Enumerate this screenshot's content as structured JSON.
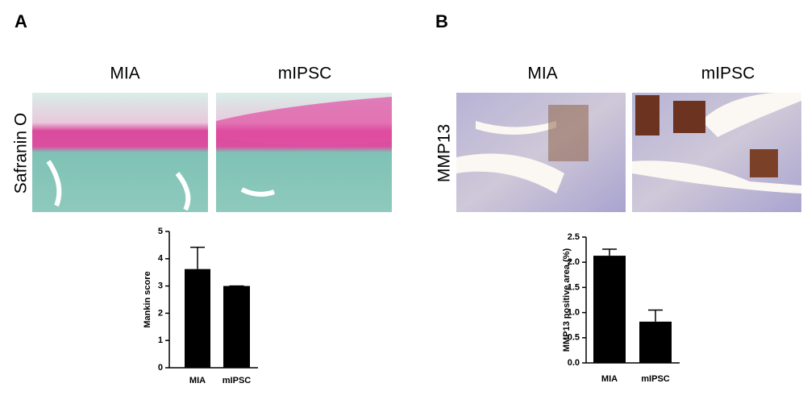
{
  "panels": [
    {
      "label": "A",
      "image_titles": [
        "MIA",
        "mIPSC"
      ],
      "stain": "Safranin O"
    },
    {
      "label": "B",
      "image_titles": [
        "MIA",
        "mIPSC"
      ],
      "stain": "MMP13"
    }
  ],
  "chart_data": [
    {
      "type": "bar",
      "ylabel": "Mankin score",
      "categories": [
        "MIA",
        "mIPSC"
      ],
      "values": [
        3.62,
        3.0
      ],
      "errors": [
        0.8,
        0
      ],
      "color": "#000000",
      "ylim": [
        0,
        5
      ],
      "yticks": [
        0,
        1,
        2,
        3,
        4,
        5
      ]
    },
    {
      "type": "bar",
      "ylabel": "MMP13 positive area (%)",
      "categories": [
        "MIA",
        "mIPSC"
      ],
      "values": [
        2.13,
        0.82
      ],
      "errors": [
        0.13,
        0.23
      ],
      "color": "#000000",
      "ylim": [
        0,
        2.5
      ],
      "yticks": [
        {
          "value": 0,
          "label": "0.0"
        },
        0.5,
        {
          "value": 1,
          "label": "1.0"
        },
        1.5,
        {
          "value": 2,
          "label": "2.0"
        },
        2.5
      ]
    }
  ]
}
